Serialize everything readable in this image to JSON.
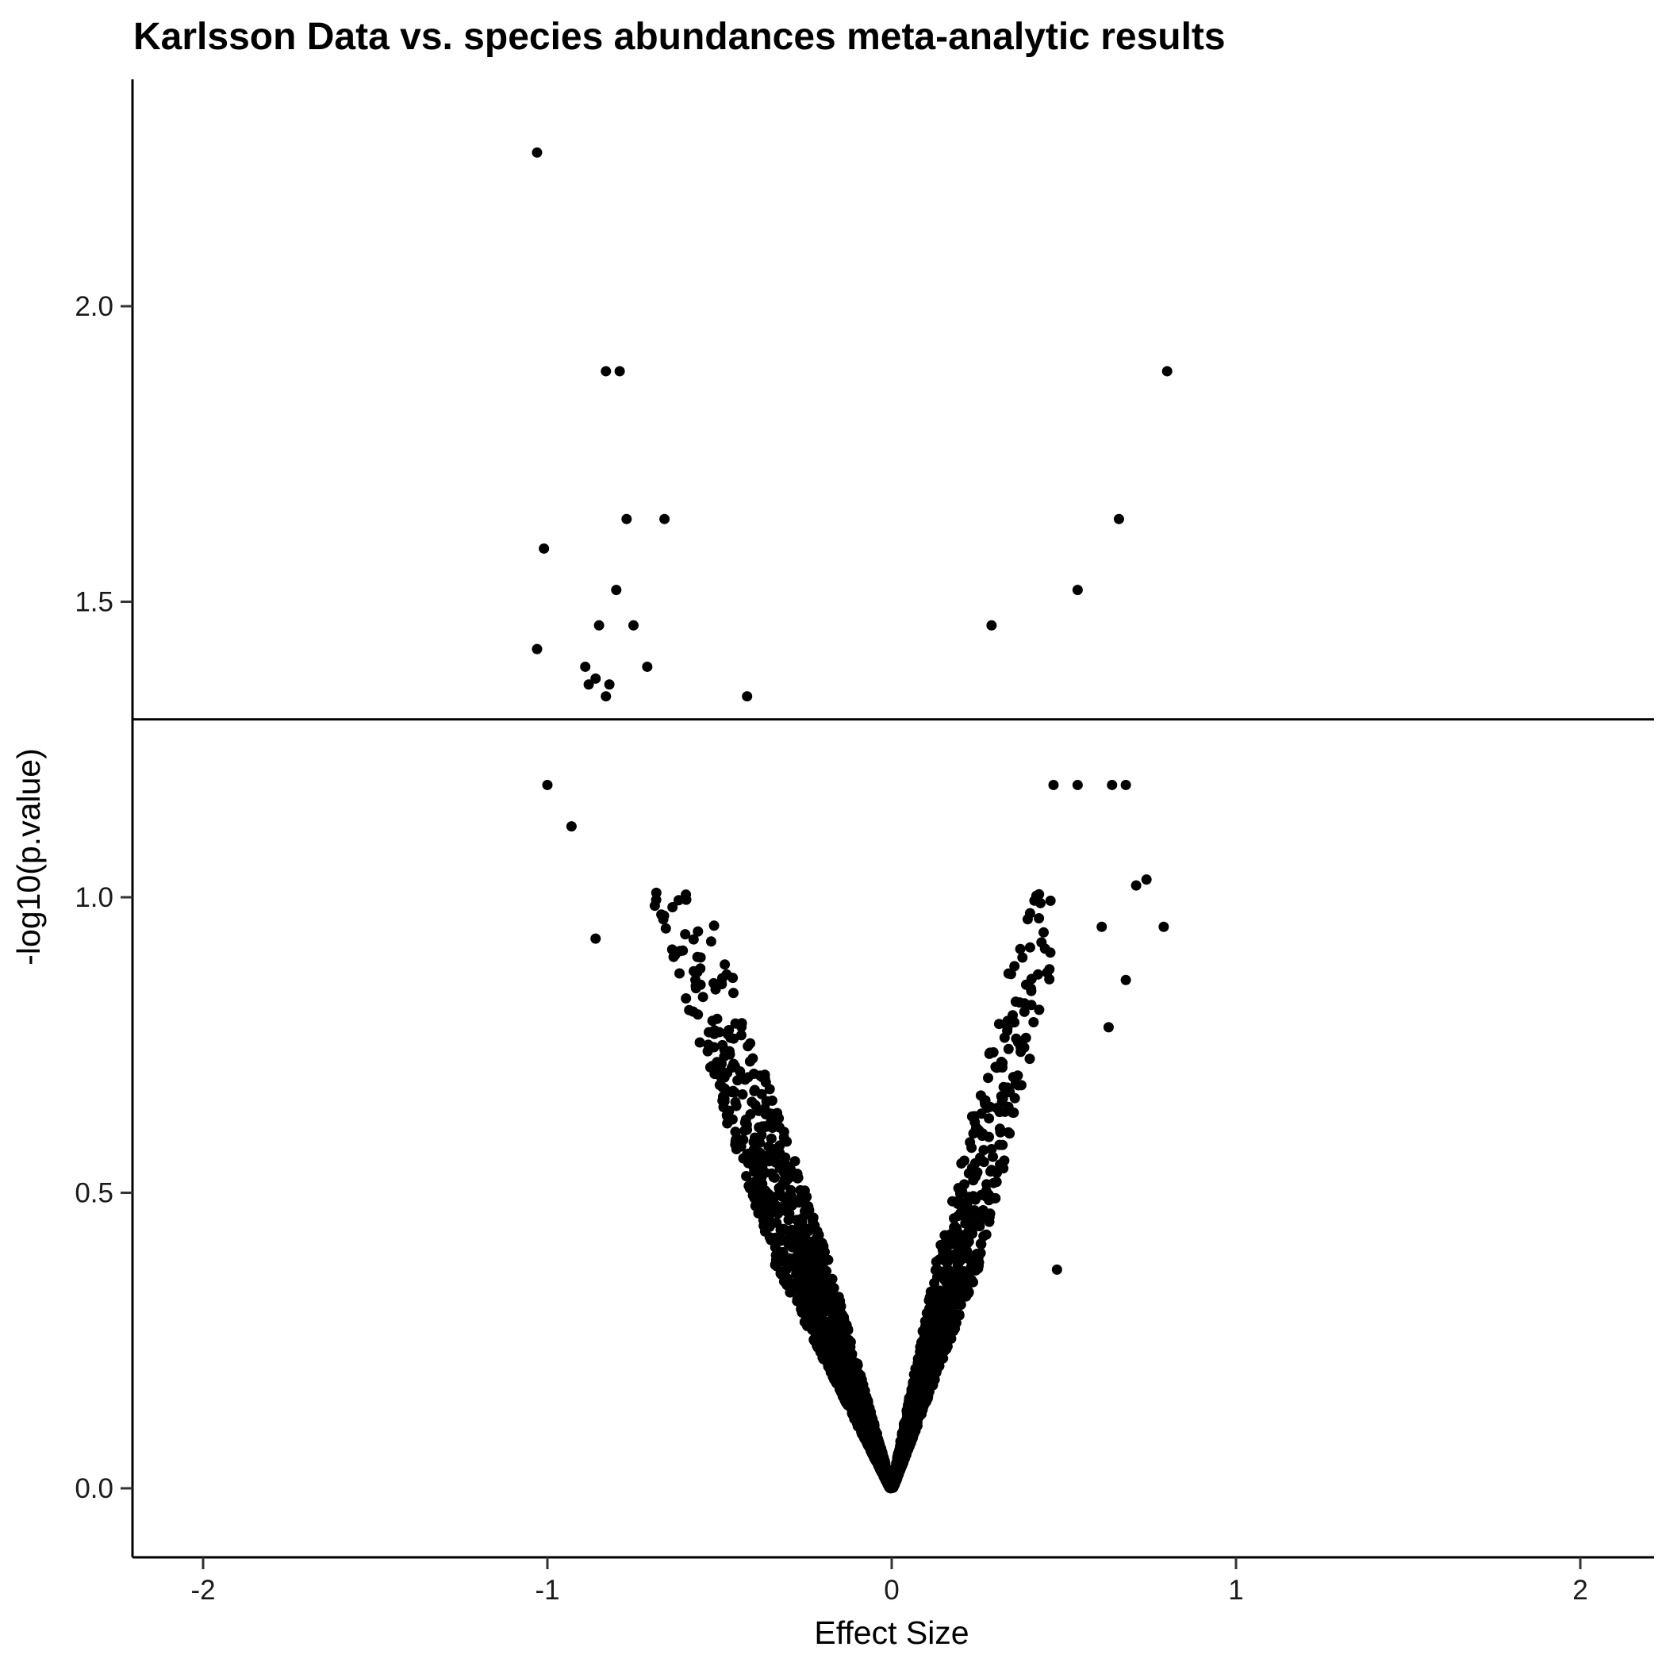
{
  "chart_data": {
    "type": "scatter",
    "title": "Karlsson Data vs. species abundances meta-analytic results",
    "xlabel": "Effect Size",
    "ylabel": "-log10(p.value)",
    "xlim": [
      -2.2,
      2.2
    ],
    "ylim": [
      -0.11,
      2.35
    ],
    "x_ticks": [
      {
        "value": -2,
        "label": "-2"
      },
      {
        "value": -1,
        "label": "-1"
      },
      {
        "value": 0,
        "label": "0"
      },
      {
        "value": 1,
        "label": "1"
      },
      {
        "value": 2,
        "label": "2"
      }
    ],
    "y_ticks": [
      {
        "value": 0,
        "label": "0.0"
      },
      {
        "value": 0.5,
        "label": "0.5"
      },
      {
        "value": 1.0,
        "label": "1.0"
      },
      {
        "value": 1.5,
        "label": "1.5"
      },
      {
        "value": 2.0,
        "label": "2.0"
      }
    ],
    "reference_line": {
      "orientation": "horizontal",
      "y": 1.30103
    },
    "grid": false,
    "legend": "none",
    "point_color": "#000000",
    "notable_points": [
      {
        "x": -1.03,
        "y": 2.26
      },
      {
        "x": -0.83,
        "y": 1.89
      },
      {
        "x": -0.79,
        "y": 1.89
      },
      {
        "x": 0.8,
        "y": 1.89
      },
      {
        "x": -0.77,
        "y": 1.64
      },
      {
        "x": -0.66,
        "y": 1.64
      },
      {
        "x": 0.66,
        "y": 1.64
      },
      {
        "x": -1.01,
        "y": 1.59
      },
      {
        "x": -0.8,
        "y": 1.52
      },
      {
        "x": 0.54,
        "y": 1.52
      },
      {
        "x": -0.85,
        "y": 1.46
      },
      {
        "x": -0.75,
        "y": 1.46
      },
      {
        "x": 0.29,
        "y": 1.46
      },
      {
        "x": -1.03,
        "y": 1.42
      },
      {
        "x": -0.89,
        "y": 1.39
      },
      {
        "x": -0.71,
        "y": 1.39
      },
      {
        "x": -0.86,
        "y": 1.37
      },
      {
        "x": -0.82,
        "y": 1.36
      },
      {
        "x": -0.88,
        "y": 1.36
      },
      {
        "x": -0.83,
        "y": 1.34
      },
      {
        "x": -0.42,
        "y": 1.34
      },
      {
        "x": 0.79,
        "y": 0.95
      },
      {
        "x": 0.74,
        "y": 1.03
      },
      {
        "x": 0.71,
        "y": 1.02
      },
      {
        "x": 0.68,
        "y": 1.19
      },
      {
        "x": 0.64,
        "y": 1.19
      },
      {
        "x": 0.54,
        "y": 1.19
      },
      {
        "x": 0.47,
        "y": 1.19
      },
      {
        "x": -1.0,
        "y": 1.19
      },
      {
        "x": -0.93,
        "y": 1.12
      },
      {
        "x": -0.86,
        "y": 0.93
      },
      {
        "x": 0.68,
        "y": 0.86
      },
      {
        "x": 0.63,
        "y": 0.78
      },
      {
        "x": 0.61,
        "y": 0.95
      },
      {
        "x": 0.48,
        "y": 0.37
      }
    ]
  }
}
